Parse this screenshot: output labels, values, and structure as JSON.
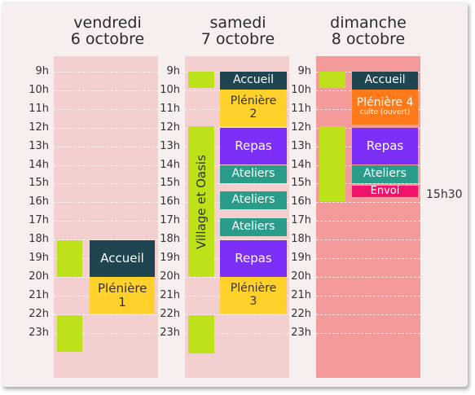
{
  "days": [
    {
      "line1": "vendredi",
      "line2": "6 octobre"
    },
    {
      "line1": "samedi",
      "line2": "7 octobre"
    },
    {
      "line1": "dimanche",
      "line2": "8 octobre"
    }
  ],
  "hours": [
    "9h",
    "10h",
    "11h",
    "12h",
    "13h",
    "14h",
    "15h",
    "16h",
    "17h",
    "18h",
    "19h",
    "20h",
    "21h",
    "22h",
    "23h"
  ],
  "events": {
    "fri_accueil": "Accueil",
    "fri_pleniere": "Plénière 1",
    "sat_accueil": "Accueil",
    "sat_pleniere2": "Plénière 2",
    "sat_village": "Village et Oasis",
    "sat_repas1": "Repas",
    "sat_ateliers1": "Ateliers",
    "sat_ateliers2": "Ateliers",
    "sat_ateliers3": "Ateliers",
    "sat_repas2": "Repas",
    "sat_pleniere3": "Plénière 3",
    "sun_accueil": "Accueil",
    "sun_pleniere4": "Plénière 4",
    "sun_culte": "culte (ouvert)",
    "sun_repas": "Repas",
    "sun_ateliers": "Ateliers",
    "sun_envoi": "Envoi"
  },
  "end_time": "15h30",
  "colors": {
    "col_fri": "#f3cfcf",
    "col_sat": "#f3cfcf",
    "col_sun": "#f59a9a",
    "dark": "#1f4550",
    "yellow": "#ffd12a",
    "purple": "#7b2ff7",
    "teal": "#2a9d8a",
    "lime": "#bde21a",
    "orange": "#ff7a1a",
    "pink": "#f0136b"
  }
}
